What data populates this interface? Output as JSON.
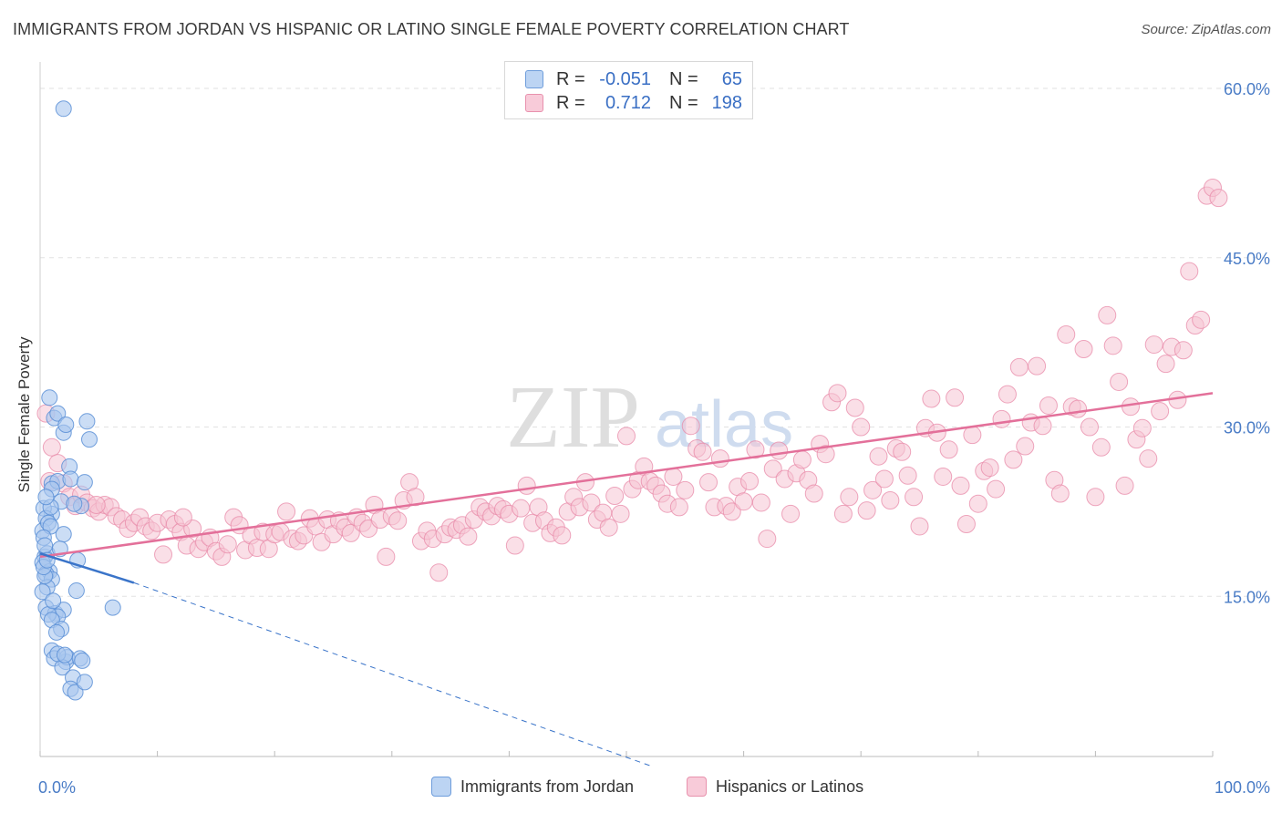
{
  "title": "IMMIGRANTS FROM JORDAN VS HISPANIC OR LATINO SINGLE FEMALE POVERTY CORRELATION CHART",
  "source_label": "Source: ZipAtlas.com",
  "watermark": {
    "zip": "ZIP",
    "atlas": "atlas"
  },
  "legend": {
    "rows": [
      {
        "r_label": "R =",
        "r_value": "-0.051",
        "n_label": "N =",
        "n_value": "65"
      },
      {
        "r_label": "R =",
        "r_value": "0.712",
        "n_label": "N =",
        "n_value": "198"
      }
    ]
  },
  "bottom_legend": {
    "jordan": "Immigrants from Jordan",
    "hispanic": "Hispanics or Latinos"
  },
  "colors": {
    "blue_fill": "#a9c7ef",
    "blue_stroke": "#5a8fd6",
    "blue_line": "#3a74c9",
    "pink_fill": "#f6c4d3",
    "pink_stroke": "#e88aa8",
    "pink_line": "#e3709a",
    "tick_text": "#4a7cc6",
    "grid": "#e2e2e2"
  },
  "chart_data": {
    "type": "scatter",
    "title": "IMMIGRANTS FROM JORDAN VS HISPANIC OR LATINO SINGLE FEMALE POVERTY CORRELATION CHART",
    "xlabel": "",
    "ylabel": "Single Female Poverty",
    "xlim": [
      0,
      100
    ],
    "ylim": [
      0,
      60
    ],
    "x_tick_labels": [
      "0.0%",
      "100.0%"
    ],
    "y_ticks": [
      {
        "value": 15,
        "label": "15.0%"
      },
      {
        "value": 30,
        "label": "30.0%"
      },
      {
        "value": 45,
        "label": "45.0%"
      },
      {
        "value": 60,
        "label": "60.0%"
      }
    ],
    "series": [
      {
        "name": "Immigrants from Jordan",
        "r": -0.051,
        "n": 65,
        "trend": {
          "solid": [
            [
              0,
              18.8
            ],
            [
              8,
              16.2
            ]
          ],
          "dashed": [
            [
              8,
              16.2
            ],
            [
              52,
              0
            ]
          ]
        },
        "points": [
          [
            2,
            58.2
          ],
          [
            0.8,
            32.6
          ],
          [
            1.2,
            30.8
          ],
          [
            1.5,
            31.2
          ],
          [
            2,
            29.5
          ],
          [
            2.2,
            30.2
          ],
          [
            4,
            30.5
          ],
          [
            4.2,
            28.9
          ],
          [
            1,
            25
          ],
          [
            1.5,
            25.2
          ],
          [
            2.5,
            26.5
          ],
          [
            2.6,
            25.4
          ],
          [
            1,
            24.5
          ],
          [
            3.8,
            25.1
          ],
          [
            1,
            22.3
          ],
          [
            0.3,
            22.8
          ],
          [
            0.5,
            21.9
          ],
          [
            0.2,
            20.8
          ],
          [
            0.7,
            21.5
          ],
          [
            0.9,
            21.2
          ],
          [
            0.3,
            20.2
          ],
          [
            2,
            20.5
          ],
          [
            0.4,
            18.5
          ],
          [
            0.6,
            18.8
          ],
          [
            0.2,
            18
          ],
          [
            0.8,
            17.2
          ],
          [
            0.5,
            17
          ],
          [
            1,
            16.5
          ],
          [
            0.6,
            15.8
          ],
          [
            3.2,
            18.2
          ],
          [
            0.4,
            16.8
          ],
          [
            0.5,
            14
          ],
          [
            1.3,
            13.5
          ],
          [
            2,
            13.8
          ],
          [
            1.5,
            13.2
          ],
          [
            0.7,
            13.4
          ],
          [
            1,
            12.9
          ],
          [
            1.8,
            12.1
          ],
          [
            1.4,
            11.8
          ],
          [
            3.1,
            15.5
          ],
          [
            6.2,
            14
          ],
          [
            1,
            10.2
          ],
          [
            1.2,
            9.5
          ],
          [
            2.2,
            9.2
          ],
          [
            2.3,
            9.6
          ],
          [
            1.9,
            8.7
          ],
          [
            3.4,
            9.5
          ],
          [
            3.6,
            9.3
          ],
          [
            2.8,
            7.8
          ],
          [
            2.6,
            6.8
          ],
          [
            3,
            6.5
          ],
          [
            3.8,
            7.4
          ],
          [
            1.5,
            9.9
          ],
          [
            0.4,
            19.5
          ],
          [
            0.3,
            17.6
          ],
          [
            1.8,
            23.4
          ],
          [
            3.5,
            23
          ],
          [
            0.2,
            15.4
          ],
          [
            0.9,
            22.9
          ],
          [
            1.7,
            19.2
          ],
          [
            2.9,
            23.2
          ],
          [
            0.6,
            18.2
          ],
          [
            1.1,
            14.6
          ],
          [
            2.1,
            9.8
          ],
          [
            0.5,
            23.8
          ]
        ]
      },
      {
        "name": "Hispanics or Latinos",
        "r": 0.712,
        "n": 198,
        "trend": {
          "solid": [
            [
              0,
              18.5
            ],
            [
              100,
              33
            ]
          ]
        },
        "points": [
          [
            0.5,
            31.2
          ],
          [
            1,
            28.2
          ],
          [
            1.5,
            26.8
          ],
          [
            2,
            25
          ],
          [
            2.5,
            23.8
          ],
          [
            3,
            23
          ],
          [
            3.5,
            24
          ],
          [
            4,
            23.3
          ],
          [
            4.5,
            22.8
          ],
          [
            5,
            22.5
          ],
          [
            5.5,
            23.1
          ],
          [
            6,
            22.9
          ],
          [
            6.5,
            22.1
          ],
          [
            7,
            21.8
          ],
          [
            7.5,
            21
          ],
          [
            8,
            21.5
          ],
          [
            8.5,
            22
          ],
          [
            9,
            21.2
          ],
          [
            9.5,
            20.8
          ],
          [
            10,
            21.5
          ],
          [
            10.5,
            18.7
          ],
          [
            11,
            21.8
          ],
          [
            11.5,
            21.4
          ],
          [
            12,
            20.7
          ],
          [
            12.5,
            19.5
          ],
          [
            13,
            21
          ],
          [
            13.5,
            19.2
          ],
          [
            14,
            19.8
          ],
          [
            14.5,
            20.2
          ],
          [
            15,
            19
          ],
          [
            15.5,
            18.5
          ],
          [
            16,
            19.6
          ],
          [
            16.5,
            22
          ],
          [
            17,
            21.3
          ],
          [
            17.5,
            19.1
          ],
          [
            18,
            20.4
          ],
          [
            18.5,
            19.3
          ],
          [
            19,
            20.7
          ],
          [
            19.5,
            19.2
          ],
          [
            20,
            20.5
          ],
          [
            20.5,
            20.7
          ],
          [
            21,
            22.5
          ],
          [
            21.5,
            20.1
          ],
          [
            22,
            19.9
          ],
          [
            22.5,
            20.4
          ],
          [
            23,
            21.9
          ],
          [
            23.5,
            21.2
          ],
          [
            24,
            19.8
          ],
          [
            24.5,
            21.8
          ],
          [
            25,
            20.5
          ],
          [
            25.5,
            21.7
          ],
          [
            26,
            21.1
          ],
          [
            26.5,
            20.6
          ],
          [
            27,
            22
          ],
          [
            27.5,
            21.5
          ],
          [
            28,
            21
          ],
          [
            28.5,
            23.1
          ],
          [
            29,
            21.8
          ],
          [
            29.5,
            18.5
          ],
          [
            30,
            22.1
          ],
          [
            30.5,
            21.7
          ],
          [
            31,
            23.5
          ],
          [
            31.5,
            25.1
          ],
          [
            32,
            23.8
          ],
          [
            32.5,
            19.9
          ],
          [
            33,
            20.8
          ],
          [
            33.5,
            20.1
          ],
          [
            34,
            17.1
          ],
          [
            34.5,
            20.5
          ],
          [
            35,
            21.1
          ],
          [
            35.5,
            20.9
          ],
          [
            36,
            21.3
          ],
          [
            36.5,
            20.3
          ],
          [
            37,
            21.8
          ],
          [
            37.5,
            22.9
          ],
          [
            38,
            22.5
          ],
          [
            38.5,
            22.1
          ],
          [
            39,
            23
          ],
          [
            39.5,
            22.7
          ],
          [
            40,
            22.3
          ],
          [
            40.5,
            19.5
          ],
          [
            41,
            22.8
          ],
          [
            41.5,
            24.8
          ],
          [
            42,
            21.5
          ],
          [
            42.5,
            22.9
          ],
          [
            43,
            21.7
          ],
          [
            43.5,
            20.6
          ],
          [
            44,
            21.1
          ],
          [
            44.5,
            20.4
          ],
          [
            45,
            22.5
          ],
          [
            45.5,
            23.8
          ],
          [
            46,
            22.9
          ],
          [
            46.5,
            25.1
          ],
          [
            47,
            23.3
          ],
          [
            47.5,
            21.8
          ],
          [
            48,
            22.4
          ],
          [
            48.5,
            21.1
          ],
          [
            49,
            23.9
          ],
          [
            49.5,
            22.3
          ],
          [
            50,
            29.2
          ],
          [
            50.5,
            24.5
          ],
          [
            51,
            25.3
          ],
          [
            51.5,
            26.5
          ],
          [
            52,
            25.2
          ],
          [
            52.5,
            24.8
          ],
          [
            53,
            24.1
          ],
          [
            53.5,
            23.2
          ],
          [
            54,
            25.6
          ],
          [
            54.5,
            22.9
          ],
          [
            55,
            24.4
          ],
          [
            55.5,
            30.1
          ],
          [
            56,
            28.1
          ],
          [
            56.5,
            27.8
          ],
          [
            57,
            25.1
          ],
          [
            57.5,
            22.9
          ],
          [
            58,
            27.2
          ],
          [
            58.5,
            23
          ],
          [
            59,
            22.5
          ],
          [
            59.5,
            24.7
          ],
          [
            60,
            23.4
          ],
          [
            60.5,
            25.2
          ],
          [
            61,
            28
          ],
          [
            61.5,
            23.3
          ],
          [
            62,
            20.1
          ],
          [
            62.5,
            26.3
          ],
          [
            63,
            27.9
          ],
          [
            63.5,
            25.4
          ],
          [
            64,
            22.3
          ],
          [
            64.5,
            25.9
          ],
          [
            65,
            27.1
          ],
          [
            65.5,
            25.3
          ],
          [
            66,
            24.1
          ],
          [
            66.5,
            28.5
          ],
          [
            67,
            27.6
          ],
          [
            67.5,
            32.2
          ],
          [
            68,
            33
          ],
          [
            68.5,
            22.3
          ],
          [
            69,
            23.8
          ],
          [
            69.5,
            31.7
          ],
          [
            70,
            30
          ],
          [
            70.5,
            22.6
          ],
          [
            71,
            24.4
          ],
          [
            71.5,
            27.4
          ],
          [
            72,
            25.4
          ],
          [
            72.5,
            23.5
          ],
          [
            73,
            28.1
          ],
          [
            73.5,
            27.8
          ],
          [
            74,
            25.7
          ],
          [
            74.5,
            23.8
          ],
          [
            75,
            21.2
          ],
          [
            75.5,
            29.9
          ],
          [
            76,
            32.5
          ],
          [
            76.5,
            29.5
          ],
          [
            77,
            25.6
          ],
          [
            77.5,
            28
          ],
          [
            78,
            32.6
          ],
          [
            78.5,
            24.8
          ],
          [
            79,
            21.4
          ],
          [
            79.5,
            29.3
          ],
          [
            80,
            23.2
          ],
          [
            80.5,
            26.1
          ],
          [
            81,
            26.4
          ],
          [
            81.5,
            24.5
          ],
          [
            82,
            30.7
          ],
          [
            82.5,
            32.9
          ],
          [
            83,
            27.1
          ],
          [
            83.5,
            35.3
          ],
          [
            84,
            28.3
          ],
          [
            84.5,
            30.4
          ],
          [
            85,
            35.4
          ],
          [
            85.5,
            30.1
          ],
          [
            86,
            31.9
          ],
          [
            86.5,
            25.3
          ],
          [
            87,
            24.1
          ],
          [
            87.5,
            38.2
          ],
          [
            88,
            31.8
          ],
          [
            88.5,
            31.6
          ],
          [
            89,
            36.9
          ],
          [
            89.5,
            30
          ],
          [
            90,
            23.8
          ],
          [
            90.5,
            28.2
          ],
          [
            91,
            39.9
          ],
          [
            91.5,
            37.2
          ],
          [
            92,
            34
          ],
          [
            92.5,
            24.8
          ],
          [
            93,
            31.8
          ],
          [
            93.5,
            28.9
          ],
          [
            94,
            29.9
          ],
          [
            94.5,
            27.2
          ],
          [
            95,
            37.3
          ],
          [
            95.5,
            31.4
          ],
          [
            96,
            35.6
          ],
          [
            96.5,
            37.1
          ],
          [
            97,
            32.4
          ],
          [
            97.5,
            36.8
          ],
          [
            98,
            43.8
          ],
          [
            98.5,
            39
          ],
          [
            99,
            39.5
          ],
          [
            99.5,
            50.5
          ],
          [
            100,
            51.2
          ],
          [
            100.5,
            50.3
          ],
          [
            0.8,
            25.2
          ],
          [
            4.8,
            23.1
          ],
          [
            12.2,
            22
          ]
        ]
      }
    ]
  }
}
